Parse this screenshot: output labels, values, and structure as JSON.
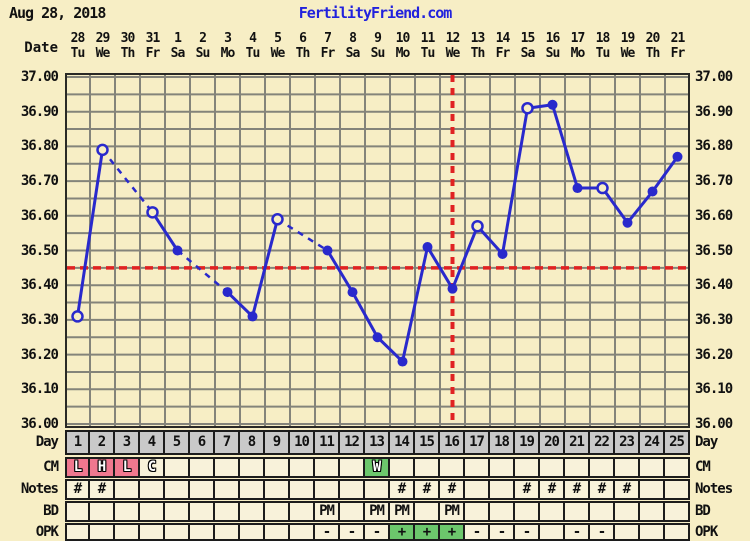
{
  "header": {
    "date": "Aug 28, 2018",
    "site": "FertilityFriend.com"
  },
  "y_axis": {
    "date_label": "Date",
    "labels": [
      "37.00",
      "36.90",
      "36.80",
      "36.70",
      "36.60",
      "36.50",
      "36.40",
      "36.30",
      "36.20",
      "36.10",
      "36.00"
    ]
  },
  "calendar": {
    "dates": [
      "28",
      "29",
      "30",
      "31",
      "1",
      "2",
      "3",
      "4",
      "5",
      "6",
      "7",
      "8",
      "9",
      "10",
      "11",
      "12",
      "13",
      "14",
      "15",
      "16",
      "17",
      "18",
      "19",
      "20",
      "21"
    ],
    "weekdays": [
      "Tu",
      "We",
      "Th",
      "Fr",
      "Sa",
      "Su",
      "Mo",
      "Tu",
      "We",
      "Th",
      "Fr",
      "Sa",
      "Su",
      "Mo",
      "Tu",
      "We",
      "Th",
      "Fr",
      "Sa",
      "Su",
      "Mo",
      "Tu",
      "We",
      "Th",
      "Fr"
    ]
  },
  "chart_data": {
    "type": "line",
    "title": "Basal body temperature chart",
    "x_days": [
      1,
      2,
      3,
      4,
      5,
      6,
      7,
      8,
      9,
      10,
      11,
      12,
      13,
      14,
      15,
      16,
      17,
      18,
      19,
      20,
      21,
      22,
      23,
      24,
      25
    ],
    "series": [
      {
        "name": "temperature_c",
        "values": [
          36.31,
          36.79,
          null,
          36.61,
          36.5,
          null,
          36.38,
          36.31,
          36.59,
          null,
          36.5,
          36.38,
          36.25,
          36.18,
          36.51,
          36.39,
          36.57,
          36.49,
          36.91,
          36.92,
          36.68,
          36.68,
          36.58,
          36.67,
          36.77
        ]
      }
    ],
    "open_circle_days": [
      1,
      2,
      4,
      9,
      17,
      19,
      22
    ],
    "missing_days": [
      3,
      6,
      10
    ],
    "coverline_temp": 36.45,
    "ovulation_line_day": 16,
    "ylim": [
      36.0,
      37.0
    ],
    "y_major_step": 0.1,
    "y_minor_step": 0.05,
    "grid": true,
    "legend": "none"
  },
  "table": {
    "rows": [
      {
        "key": "day",
        "label": "Day",
        "style": "gray",
        "cells": [
          "1",
          "2",
          "3",
          "4",
          "5",
          "6",
          "7",
          "8",
          "9",
          "10",
          "11",
          "12",
          "13",
          "14",
          "15",
          "16",
          "17",
          "18",
          "19",
          "20",
          "21",
          "22",
          "23",
          "24",
          "25"
        ]
      },
      {
        "key": "cm",
        "label": "CM",
        "style": "outlined",
        "cells": [
          "L",
          "H",
          "L",
          "C",
          "",
          "",
          "",
          "",
          "",
          "",
          "",
          "",
          "W",
          "",
          "",
          "",
          "",
          "",
          "",
          "",
          "",
          "",
          "",
          "",
          ""
        ],
        "cell_bg": {
          "1": "pink",
          "2": "pink",
          "3": "pink",
          "13": "green"
        }
      },
      {
        "key": "notes",
        "label": "Notes",
        "cells": [
          "#",
          "#",
          "",
          "",
          "",
          "",
          "",
          "",
          "",
          "",
          "",
          "",
          "",
          "#",
          "#",
          "#",
          "",
          "",
          "#",
          "#",
          "#",
          "#",
          "#",
          "",
          ""
        ]
      },
      {
        "key": "bd",
        "label": "BD",
        "cells": [
          "",
          "",
          "",
          "",
          "",
          "",
          "",
          "",
          "",
          "",
          "PM",
          "",
          "PM",
          "PM",
          "",
          "PM",
          "",
          "",
          "",
          "",
          "",
          "",
          "",
          "",
          ""
        ]
      },
      {
        "key": "opk",
        "label": "OPK",
        "cells": [
          "",
          "",
          "",
          "",
          "",
          "",
          "",
          "",
          "",
          "",
          "-",
          "-",
          "-",
          "+",
          "+",
          "+",
          "-",
          "-",
          "-",
          "",
          "-",
          "-",
          "",
          "",
          ""
        ],
        "cell_bg": {
          "14": "green",
          "15": "green",
          "16": "green"
        }
      }
    ]
  },
  "colors": {
    "page_bg": "#f7eec5",
    "cell_bg": "#f8f2da",
    "day_row_bg": "#c9c9c9",
    "grid": "#84847a",
    "plot_border": "#2a2a26",
    "line_blue": "#2929cc",
    "red": "#e02222",
    "pink": "#f0788f",
    "green": "#6cc76c",
    "link_blue": "#2222dd",
    "text": "#111111"
  }
}
